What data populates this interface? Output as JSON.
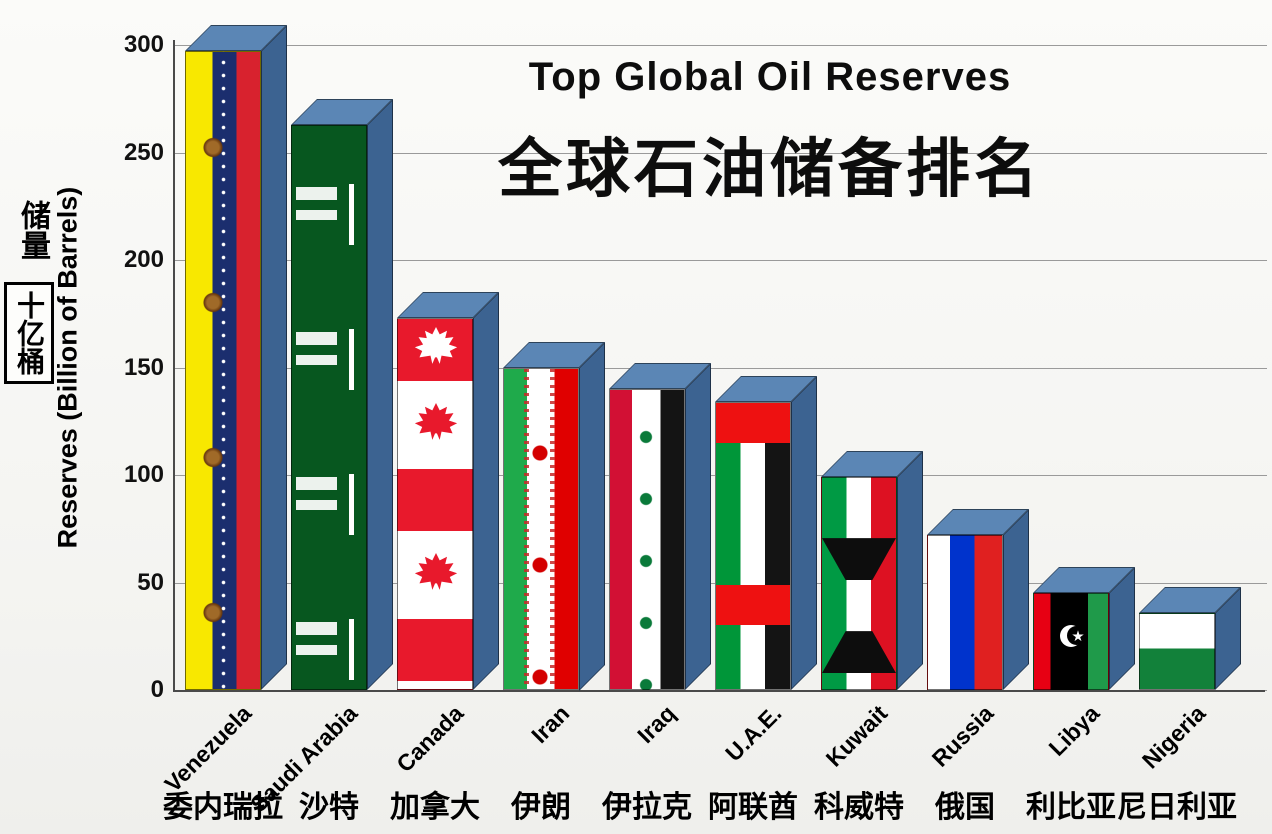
{
  "title": {
    "en": "Top Global Oil Reserves",
    "zh": "全球石油储备排名"
  },
  "y_axis": {
    "label_en": "Reserves (Billion of Barrels)",
    "label_zh_1": "储量",
    "label_zh_2": "十亿桶",
    "ticks": [
      300,
      250,
      200,
      150,
      100,
      50,
      0
    ]
  },
  "chart_data": {
    "type": "bar",
    "title": "Top Global Oil Reserves",
    "subtitle_zh": "全球石油储备排名",
    "ylabel": "Reserves (Billion of Barrels)",
    "ylim": [
      0,
      300
    ],
    "grid": "horizontal",
    "legend": "none",
    "categories": [
      "Venezuela",
      "Saudi Arabia",
      "Canada",
      "Iran",
      "Iraq",
      "U.A.E.",
      "Kuwait",
      "Russia",
      "Libya",
      "Nigeria"
    ],
    "categories_zh": [
      "委内瑞拉",
      "沙特",
      "加拿大",
      "伊朗",
      "伊拉克",
      "阿联酋",
      "科威特",
      "俄国",
      "利比亚",
      "尼日利亚"
    ],
    "values": [
      297,
      263,
      173,
      150,
      140,
      134,
      99,
      72,
      45,
      36
    ],
    "flags": [
      "venezuela",
      "saudi",
      "canada",
      "iran",
      "iraq",
      "uae",
      "kuwait",
      "russia",
      "libya",
      "nigeria"
    ],
    "colors": {
      "bar_top": "#5b86b5",
      "bar_side": "#3c6391",
      "gridline": "#9a9a9a",
      "text": "#0d0d0d"
    }
  }
}
